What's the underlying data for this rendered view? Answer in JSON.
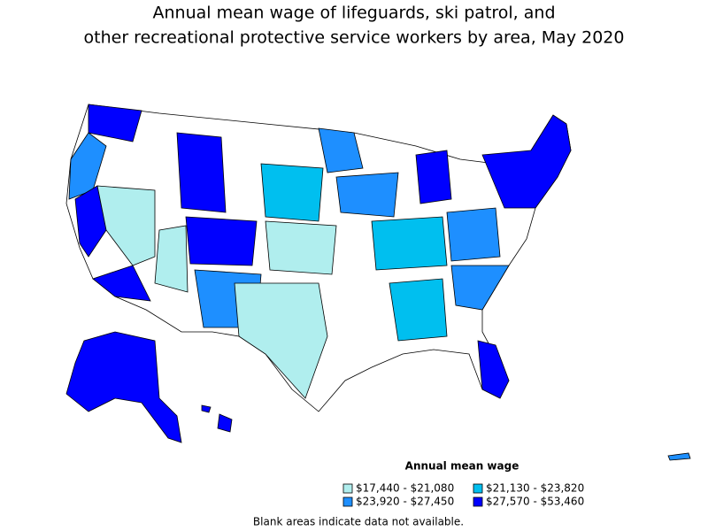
{
  "title": [
    "Annual mean wage of lifeguards, ski patrol, and",
    "other recreational protective service workers by area, May 2020"
  ],
  "legend": {
    "title": "Annual mean wage",
    "items": [
      {
        "label": "$17,440 - $21,080",
        "color": "#b0eeee"
      },
      {
        "label": "$21,130 - $23,820",
        "color": "#00bfef"
      },
      {
        "label": "$23,920 - $27,450",
        "color": "#1e8fff"
      },
      {
        "label": "$27,570 - $53,460",
        "color": "#0000ff"
      }
    ]
  },
  "footnote": "Blank areas indicate data not available."
}
